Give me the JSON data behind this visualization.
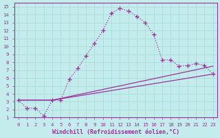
{
  "xlabel": "Windchill (Refroidissement éolien,°C)",
  "ylabel": "",
  "xlim": [
    -0.5,
    23.5
  ],
  "ylim": [
    1,
    15.5
  ],
  "xticks": [
    0,
    1,
    2,
    3,
    4,
    5,
    6,
    7,
    8,
    9,
    10,
    11,
    12,
    13,
    14,
    15,
    16,
    17,
    18,
    19,
    20,
    21,
    22,
    23
  ],
  "yticks": [
    1,
    2,
    3,
    4,
    5,
    6,
    7,
    8,
    9,
    10,
    11,
    12,
    13,
    14,
    15
  ],
  "background_color": "#c5ecec",
  "grid_color": "#aadddd",
  "line_color": "#993399",
  "line1_x": [
    0,
    1,
    2,
    3,
    4,
    5,
    6,
    7,
    8,
    9,
    10,
    11,
    12,
    13,
    14,
    15,
    16,
    17,
    18,
    19,
    20,
    21,
    22,
    23
  ],
  "line1_y": [
    3.2,
    2.2,
    2.2,
    1.2,
    3.2,
    3.2,
    5.8,
    7.2,
    8.8,
    10.4,
    12.0,
    14.2,
    14.8,
    14.5,
    13.8,
    13.0,
    11.5,
    8.3,
    8.3,
    7.5,
    7.6,
    7.8,
    7.6,
    6.5
  ],
  "line2_x": [
    0,
    4,
    23
  ],
  "line2_y": [
    3.2,
    3.2,
    7.5
  ],
  "line3_x": [
    0,
    4,
    23
  ],
  "line3_y": [
    3.2,
    3.2,
    6.5
  ],
  "marker": "+",
  "markersize": 4,
  "linewidth": 0.9,
  "tick_fontsize": 5.2,
  "label_fontsize": 6.0
}
